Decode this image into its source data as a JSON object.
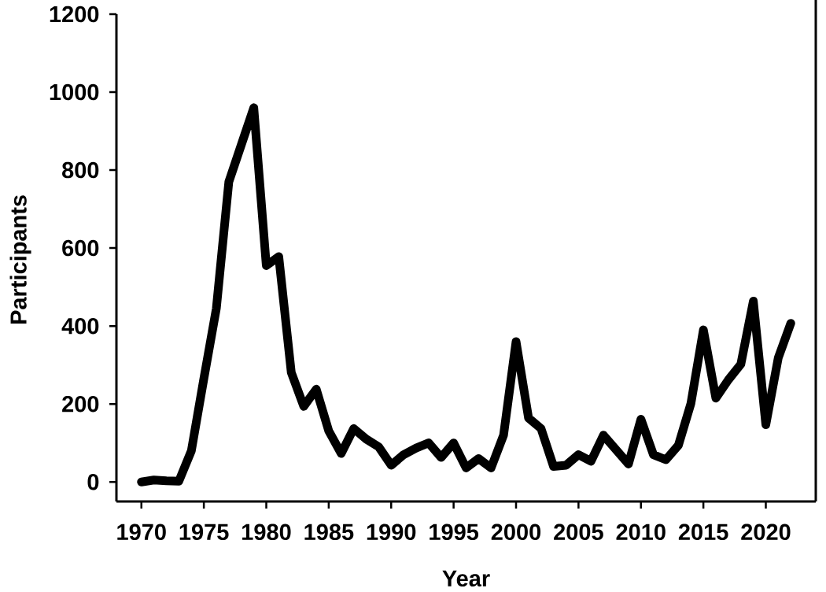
{
  "chart_data": {
    "type": "line",
    "xlabel": "Year",
    "ylabel": "Participants",
    "x": [
      1970,
      1971,
      1972,
      1973,
      1974,
      1975,
      1976,
      1977,
      1978,
      1979,
      1980,
      1981,
      1982,
      1983,
      1984,
      1985,
      1986,
      1987,
      1988,
      1989,
      1990,
      1991,
      1992,
      1993,
      1994,
      1995,
      1996,
      1997,
      1998,
      1999,
      2000,
      2001,
      2002,
      2003,
      2004,
      2005,
      2006,
      2007,
      2008,
      2009,
      2010,
      2011,
      2012,
      2013,
      2014,
      2015,
      2016,
      2017,
      2018,
      2019,
      2020,
      2021,
      2022
    ],
    "series": [
      {
        "color": "#000000",
        "values": [
          0,
          5,
          3,
          2,
          80,
          265,
          445,
          770,
          865,
          960,
          555,
          578,
          281,
          194,
          238,
          131,
          73,
          137,
          110,
          90,
          43,
          70,
          87,
          100,
          63,
          100,
          36,
          60,
          36,
          120,
          360,
          164,
          137,
          40,
          43,
          70,
          53,
          120,
          83,
          46,
          161,
          70,
          57,
          94,
          201,
          390,
          215,
          262,
          302,
          464,
          147,
          319,
          407
        ]
      }
    ],
    "xlim": [
      1968,
      2024
    ],
    "ylim": [
      -50,
      1200
    ],
    "xticks": [
      1970,
      1975,
      1980,
      1985,
      1990,
      1995,
      2000,
      2005,
      2010,
      2015,
      2020
    ],
    "yticks": [
      0,
      200,
      400,
      600,
      800,
      1000,
      1200
    ],
    "line_style": "solid"
  }
}
